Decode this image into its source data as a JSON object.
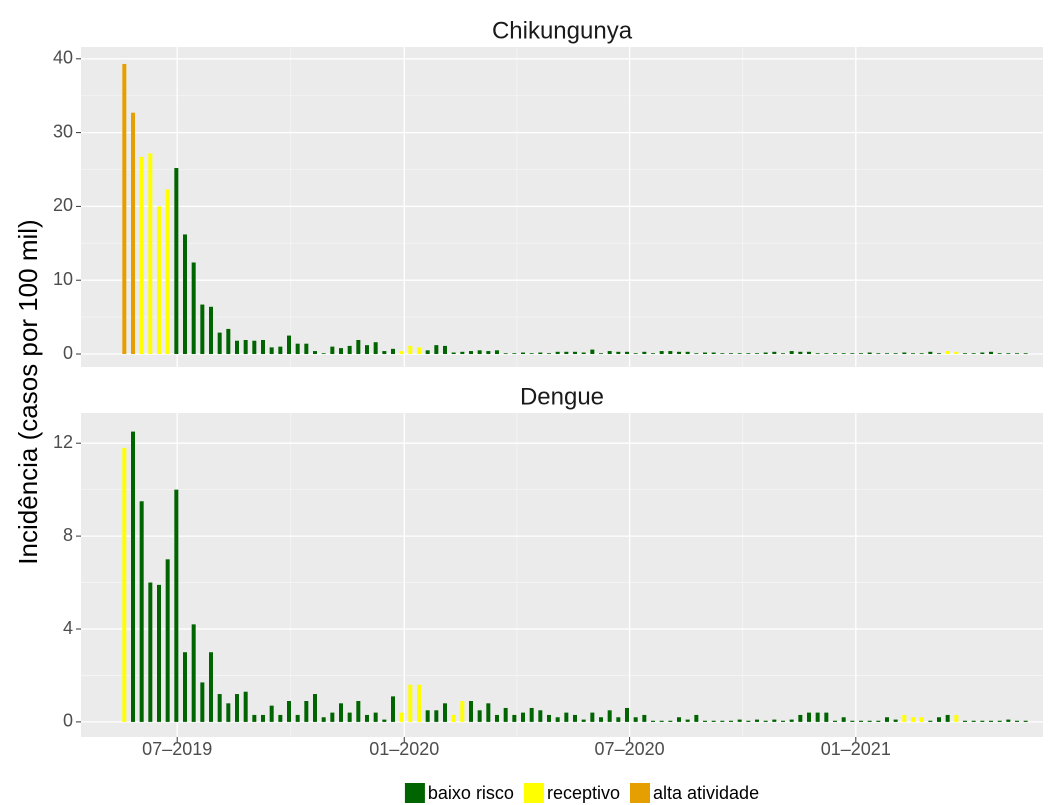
{
  "chart_data": [
    {
      "type": "bar",
      "title": "Chikungunya",
      "ylim": [
        -1.76,
        41.6
      ],
      "yticks": [
        0,
        10,
        20,
        30,
        40
      ],
      "grid": true,
      "series": [
        {
          "name": "baixo risco",
          "color": "#006400",
          "values": [
            null,
            null,
            null,
            null,
            null,
            null,
            25.2,
            16.2,
            12.4,
            6.7,
            6.4,
            2.9,
            3.4,
            1.8,
            1.9,
            1.8,
            1.9,
            0.9,
            1.0,
            2.5,
            1.4,
            1.4,
            0.4,
            0.1,
            1.0,
            0.8,
            1.1,
            1.9,
            1.2,
            1.6,
            0.4,
            0.7,
            null,
            null,
            null,
            0.5,
            1.2,
            1.1,
            0.2,
            0.3,
            0.4,
            0.5,
            0.4,
            0.5,
            0.1,
            0.1,
            0.2,
            0.1,
            0.2,
            0.1,
            0.3,
            0.3,
            0.3,
            0.2,
            0.6,
            0.1,
            0.4,
            0.3,
            0.3,
            0.1,
            0.3,
            0.1,
            0.4,
            0.4,
            0.3,
            0.3,
            0.1,
            0.2,
            0.2,
            0.1,
            0.1,
            0.1,
            0.1,
            0.1,
            0.2,
            0.3,
            0.1,
            0.4,
            0.3,
            0.3,
            0.1,
            0.1,
            0.1,
            0.1,
            0.1,
            0.1,
            0.2,
            0.1,
            0.1,
            0.1,
            0.2,
            0.1,
            0.1,
            0.3,
            0.1,
            null,
            null,
            0.1,
            0.1,
            0.2,
            0.3,
            0.1,
            0.1,
            0.1,
            0.1
          ]
        },
        {
          "name": "receptivo",
          "color": "#ffff00",
          "values": [
            null,
            null,
            26.7,
            27.2,
            20.0,
            22.3,
            null,
            null,
            null,
            null,
            null,
            null,
            null,
            null,
            null,
            null,
            null,
            null,
            null,
            null,
            null,
            null,
            null,
            null,
            null,
            null,
            null,
            null,
            null,
            null,
            null,
            null,
            0.4,
            1.1,
            0.9,
            null,
            null,
            null,
            null,
            null,
            null,
            null,
            null,
            null,
            null,
            null,
            null,
            null,
            null,
            null,
            null,
            null,
            null,
            null,
            null,
            null,
            null,
            null,
            null,
            null,
            null,
            null,
            null,
            null,
            null,
            null,
            null,
            null,
            null,
            null,
            null,
            null,
            null,
            null,
            null,
            null,
            null,
            null,
            null,
            null,
            null,
            null,
            null,
            null,
            null,
            null,
            null,
            null,
            null,
            null,
            null,
            null,
            null,
            null,
            null,
            0.4,
            0.3,
            null,
            null,
            null,
            null,
            null,
            null,
            null,
            null
          ]
        },
        {
          "name": "alta atividade",
          "color": "#e69f00",
          "values": [
            39.3,
            32.7,
            null,
            null,
            null,
            null,
            null,
            null,
            null,
            null,
            null,
            null,
            null,
            null,
            null,
            null,
            null,
            null,
            null,
            null,
            null,
            null,
            null,
            null,
            null,
            null,
            null,
            null,
            null,
            null,
            null,
            null,
            null,
            null,
            null,
            null,
            null,
            null,
            null,
            null,
            null,
            null,
            null,
            null,
            null,
            null,
            null,
            null,
            null,
            null,
            null,
            null,
            null,
            null,
            null,
            null,
            null,
            null,
            null,
            null,
            null,
            null,
            null,
            null,
            null,
            null,
            null,
            null,
            null,
            null,
            null,
            null,
            null,
            null,
            null,
            null,
            null,
            null,
            null,
            null,
            null,
            null,
            null,
            null,
            null,
            null,
            null,
            null,
            null,
            null,
            null,
            null,
            null,
            null,
            null,
            null,
            null,
            null,
            null,
            null,
            null,
            null,
            null,
            null,
            null
          ]
        }
      ]
    },
    {
      "type": "bar",
      "title": "Dengue",
      "ylim": [
        -0.65,
        13.3
      ],
      "yticks": [
        0,
        4,
        8,
        12
      ],
      "grid": true,
      "series": [
        {
          "name": "baixo risco",
          "color": "#006400",
          "values": [
            null,
            12.5,
            9.5,
            6.0,
            5.9,
            7.0,
            10.0,
            3.0,
            4.2,
            1.7,
            3.0,
            1.2,
            0.8,
            1.2,
            1.3,
            0.3,
            0.3,
            0.7,
            0.3,
            0.9,
            0.3,
            0.9,
            1.2,
            0.2,
            0.4,
            0.8,
            0.4,
            0.9,
            0.3,
            0.4,
            0.1,
            1.1,
            null,
            null,
            null,
            0.5,
            0.5,
            0.8,
            null,
            null,
            0.9,
            0.5,
            0.8,
            0.3,
            0.6,
            0.3,
            0.4,
            0.6,
            0.5,
            0.3,
            0.2,
            0.4,
            0.3,
            0.1,
            0.4,
            0.2,
            0.5,
            0.2,
            0.6,
            0.2,
            0.3,
            0.05,
            0.05,
            0.05,
            0.2,
            0.1,
            0.3,
            0.05,
            0.05,
            0.05,
            0.05,
            0.1,
            0.05,
            0.1,
            0.05,
            0.1,
            0.05,
            0.1,
            0.3,
            0.4,
            0.4,
            0.4,
            0.05,
            0.2,
            0.05,
            0.05,
            0.05,
            0.05,
            0.2,
            0.1,
            null,
            null,
            null,
            0.05,
            0.2,
            0.3,
            null,
            0.05,
            0.05,
            0.05,
            0.05,
            0.05,
            0.1,
            0.05,
            0.05
          ]
        },
        {
          "name": "receptivo",
          "color": "#ffff00",
          "values": [
            11.8,
            null,
            null,
            null,
            null,
            null,
            null,
            null,
            null,
            null,
            null,
            null,
            null,
            null,
            null,
            null,
            null,
            null,
            null,
            null,
            null,
            null,
            null,
            null,
            null,
            null,
            null,
            null,
            null,
            null,
            null,
            null,
            0.4,
            1.6,
            1.6,
            null,
            null,
            null,
            0.3,
            0.9,
            null,
            null,
            null,
            null,
            null,
            null,
            null,
            null,
            null,
            null,
            null,
            null,
            null,
            null,
            null,
            null,
            null,
            null,
            null,
            null,
            null,
            null,
            null,
            null,
            null,
            null,
            null,
            null,
            null,
            null,
            null,
            null,
            null,
            null,
            null,
            null,
            null,
            null,
            null,
            null,
            null,
            null,
            null,
            null,
            null,
            null,
            null,
            null,
            null,
            null,
            0.3,
            0.2,
            0.2,
            null,
            null,
            null,
            0.3,
            null,
            null,
            null,
            null,
            null,
            null,
            null,
            null
          ]
        },
        {
          "name": "alta atividade",
          "color": "#e69f00",
          "values": [
            null,
            null,
            null,
            null,
            null,
            null,
            null,
            null,
            null,
            null,
            null,
            null,
            null,
            null,
            null,
            null,
            null,
            null,
            null,
            null,
            null,
            null,
            null,
            null,
            null,
            null,
            null,
            null,
            null,
            null,
            null,
            null,
            null,
            null,
            null,
            null,
            null,
            null,
            null,
            null,
            null,
            null,
            null,
            null,
            null,
            null,
            null,
            null,
            null,
            null,
            null,
            null,
            null,
            null,
            null,
            null,
            null,
            null,
            null,
            null,
            null,
            null,
            null,
            null,
            null,
            null,
            null,
            null,
            null,
            null,
            null,
            null,
            null,
            null,
            null,
            null,
            null,
            null,
            null,
            null,
            null,
            null,
            null,
            null,
            null,
            null,
            null,
            null,
            null,
            null,
            null,
            null,
            null,
            null,
            null,
            null,
            null,
            null,
            null,
            null,
            null,
            null,
            null,
            null,
            null
          ]
        }
      ]
    }
  ],
  "shared": {
    "ylabel": "Incidência (casos por 100 mil)",
    "x": [
      0,
      1,
      2,
      3,
      4,
      5,
      6,
      7,
      8,
      9,
      10,
      11,
      12,
      13,
      14,
      15,
      16,
      17,
      18,
      19,
      20,
      21,
      22,
      23,
      24,
      25,
      26,
      27,
      28,
      29,
      30,
      31,
      32,
      33,
      34,
      35,
      36,
      37,
      38,
      39,
      40,
      41,
      42,
      43,
      44,
      45,
      46,
      47,
      48,
      49,
      50,
      51,
      52,
      53,
      54,
      55,
      56,
      57,
      58,
      59,
      60,
      61,
      62,
      63,
      64,
      65,
      66,
      67,
      68,
      69,
      70,
      71,
      72,
      73,
      74,
      75,
      76,
      77,
      78,
      79,
      80,
      81,
      82,
      83,
      84,
      85,
      86,
      87,
      88,
      89,
      90,
      91,
      92,
      93,
      94,
      95,
      96,
      97,
      98,
      99,
      100,
      101,
      102,
      103,
      104
    ],
    "xlim": [
      -5,
      106
    ],
    "xticks": [
      {
        "value": 6.1,
        "label": "07–2019"
      },
      {
        "value": 32.3,
        "label": "01–2020"
      },
      {
        "value": 58.3,
        "label": "07–2020"
      },
      {
        "value": 84.4,
        "label": "01–2021"
      }
    ]
  }
}
